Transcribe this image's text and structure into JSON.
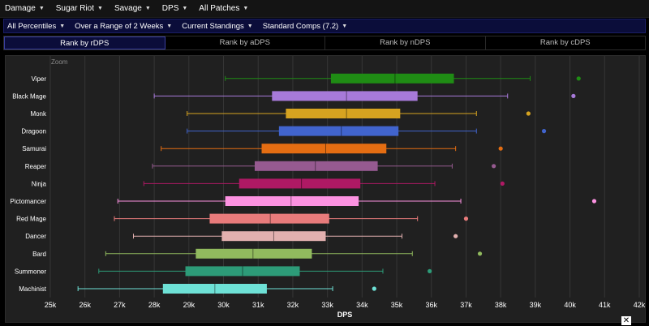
{
  "topnav": {
    "items": [
      {
        "label": "Damage"
      },
      {
        "label": "Sugar Riot"
      },
      {
        "label": "Savage"
      },
      {
        "label": "DPS"
      },
      {
        "label": "All Patches"
      }
    ]
  },
  "subnav": {
    "items": [
      {
        "label": "All Percentiles"
      },
      {
        "label": "Over a Range of 2 Weeks"
      },
      {
        "label": "Current Standings"
      },
      {
        "label": "Standard Comps (7.2)"
      }
    ]
  },
  "tabs": [
    {
      "label": "Rank by rDPS",
      "active": true
    },
    {
      "label": "Rank by aDPS",
      "active": false
    },
    {
      "label": "Rank by nDPS",
      "active": false
    },
    {
      "label": "Rank by cDPS",
      "active": false
    }
  ],
  "close_label": "✕",
  "chart_data": {
    "type": "boxplot",
    "orientation": "horizontal",
    "zoom_label": "Zoom",
    "xlabel": "DPS",
    "xlim": [
      25000,
      42000
    ],
    "xticks": [
      25000,
      26000,
      27000,
      28000,
      29000,
      30000,
      31000,
      32000,
      33000,
      34000,
      35000,
      36000,
      37000,
      38000,
      39000,
      40000,
      41000,
      42000
    ],
    "xtick_labels": [
      "25k",
      "26k",
      "27k",
      "28k",
      "29k",
      "30k",
      "31k",
      "32k",
      "33k",
      "34k",
      "35k",
      "36k",
      "37k",
      "38k",
      "39k",
      "40k",
      "41k",
      "42k"
    ],
    "grid": true,
    "series": [
      {
        "name": "Viper",
        "color": "#1f8c14",
        "min": 30050,
        "q1": 33100,
        "median": 34950,
        "q3": 36650,
        "max": 38850,
        "outlier": 40250
      },
      {
        "name": "Black Mage",
        "color": "#a77ad9",
        "min": 28000,
        "q1": 31400,
        "median": 33550,
        "q3": 35600,
        "max": 38200,
        "outlier": 40100
      },
      {
        "name": "Monk",
        "color": "#d6a320",
        "min": 28950,
        "q1": 31800,
        "median": 33550,
        "q3": 35100,
        "max": 37300,
        "outlier": 38800
      },
      {
        "name": "Dragoon",
        "color": "#4164cd",
        "min": 28950,
        "q1": 31600,
        "median": 33400,
        "q3": 35050,
        "max": 37300,
        "outlier": 39250
      },
      {
        "name": "Samurai",
        "color": "#e46d12",
        "min": 28200,
        "q1": 31100,
        "median": 32950,
        "q3": 34700,
        "max": 36700,
        "outlier": 38000
      },
      {
        "name": "Reaper",
        "color": "#965a90",
        "min": 27950,
        "q1": 30900,
        "median": 32650,
        "q3": 34450,
        "max": 36600,
        "outlier": 37800
      },
      {
        "name": "Ninja",
        "color": "#af1964",
        "min": 27700,
        "q1": 30450,
        "median": 32250,
        "q3": 33950,
        "max": 36100,
        "outlier": 38050
      },
      {
        "name": "Pictomancer",
        "color": "#fc92e1",
        "min": 26950,
        "q1": 30050,
        "median": 31950,
        "q3": 33900,
        "max": 36850,
        "outlier": 40700
      },
      {
        "name": "Red Mage",
        "color": "#e87b7b",
        "min": 26850,
        "q1": 29600,
        "median": 31350,
        "q3": 33050,
        "max": 35600,
        "outlier": 37000
      },
      {
        "name": "Dancer",
        "color": "#e2b0af",
        "min": 27400,
        "q1": 29950,
        "median": 31450,
        "q3": 32950,
        "max": 35150,
        "outlier": 36700
      },
      {
        "name": "Bard",
        "color": "#91ba5e",
        "min": 26600,
        "q1": 29200,
        "median": 30850,
        "q3": 32550,
        "max": 35450,
        "outlier": 37400
      },
      {
        "name": "Summoner",
        "color": "#2d9b78",
        "min": 26400,
        "q1": 28900,
        "median": 30550,
        "q3": 32200,
        "max": 34600,
        "outlier": 35950
      },
      {
        "name": "Machinist",
        "color": "#6ee1d6",
        "min": 25800,
        "q1": 28250,
        "median": 29750,
        "q3": 31250,
        "max": 33150,
        "outlier": 34350
      }
    ]
  }
}
